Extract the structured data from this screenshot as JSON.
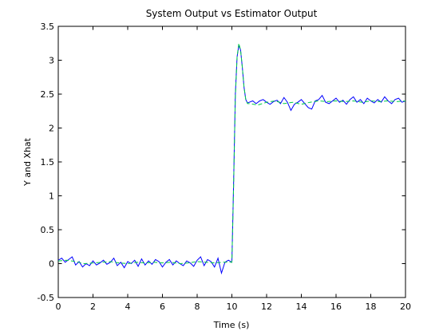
{
  "chart_data": {
    "type": "line",
    "title": "System Output vs Estimator Output",
    "xlabel": "Time (s)",
    "ylabel": "Y and Xhat",
    "xlim": [
      0,
      20
    ],
    "ylim": [
      -0.5,
      3.5
    ],
    "xticks": [
      0,
      2,
      4,
      6,
      8,
      10,
      12,
      14,
      16,
      18,
      20
    ],
    "yticks": [
      -0.5,
      0,
      0.5,
      1,
      1.5,
      2,
      2.5,
      3,
      3.5
    ],
    "grid": false,
    "legend": "none",
    "series": [
      {
        "color": "#0000ff",
        "x": [
          0,
          0.2,
          0.4,
          0.6,
          0.8,
          1.0,
          1.2,
          1.4,
          1.6,
          1.8,
          2.0,
          2.2,
          2.4,
          2.6,
          2.8,
          3.0,
          3.2,
          3.4,
          3.6,
          3.8,
          4.0,
          4.2,
          4.4,
          4.6,
          4.8,
          5.0,
          5.2,
          5.4,
          5.6,
          5.8,
          6.0,
          6.2,
          6.4,
          6.6,
          6.8,
          7.0,
          7.2,
          7.4,
          7.6,
          7.8,
          8.0,
          8.2,
          8.4,
          8.6,
          8.8,
          9.0,
          9.2,
          9.4,
          9.6,
          9.8,
          10.0,
          10.1,
          10.2,
          10.3,
          10.4,
          10.5,
          10.6,
          10.7,
          10.8,
          10.9,
          11.0,
          11.2,
          11.4,
          11.6,
          11.8,
          12.0,
          12.2,
          12.4,
          12.6,
          12.8,
          13.0,
          13.2,
          13.4,
          13.6,
          13.8,
          14.0,
          14.2,
          14.4,
          14.6,
          14.8,
          15.0,
          15.2,
          15.4,
          15.6,
          15.8,
          16.0,
          16.2,
          16.4,
          16.6,
          16.8,
          17.0,
          17.2,
          17.4,
          17.6,
          17.8,
          18.0,
          18.2,
          18.4,
          18.6,
          18.8,
          19.0,
          19.2,
          19.4,
          19.6,
          19.8,
          20.0
        ],
        "y": [
          0.05,
          0.08,
          0.02,
          0.06,
          0.1,
          -0.02,
          0.03,
          -0.05,
          0.0,
          -0.03,
          0.04,
          -0.02,
          0.01,
          0.05,
          -0.01,
          0.02,
          0.08,
          -0.03,
          0.02,
          -0.06,
          0.03,
          0.0,
          0.05,
          -0.04,
          0.07,
          -0.02,
          0.04,
          -0.01,
          0.06,
          0.03,
          -0.05,
          0.02,
          0.06,
          -0.02,
          0.04,
          0.0,
          -0.03,
          0.04,
          0.01,
          -0.04,
          0.05,
          0.1,
          -0.03,
          0.06,
          0.03,
          -0.05,
          0.08,
          -0.14,
          0.02,
          0.05,
          0.02,
          1.2,
          2.5,
          3.05,
          3.22,
          3.15,
          2.9,
          2.6,
          2.42,
          2.37,
          2.38,
          2.4,
          2.36,
          2.4,
          2.42,
          2.38,
          2.35,
          2.39,
          2.41,
          2.36,
          2.45,
          2.38,
          2.26,
          2.35,
          2.38,
          2.42,
          2.36,
          2.3,
          2.28,
          2.4,
          2.42,
          2.48,
          2.38,
          2.36,
          2.4,
          2.44,
          2.38,
          2.41,
          2.35,
          2.42,
          2.46,
          2.38,
          2.42,
          2.36,
          2.44,
          2.4,
          2.37,
          2.42,
          2.38,
          2.46,
          2.4,
          2.36,
          2.42,
          2.44,
          2.38,
          2.4
        ]
      },
      {
        "color": "#00cc44",
        "dashed": true,
        "x": [
          0,
          0.5,
          1.0,
          1.5,
          2.0,
          2.5,
          3.0,
          3.5,
          4.0,
          4.5,
          5.0,
          5.5,
          6.0,
          6.5,
          7.0,
          7.5,
          8.0,
          8.5,
          9.0,
          9.5,
          10.0,
          10.1,
          10.2,
          10.3,
          10.4,
          10.5,
          10.6,
          10.7,
          10.8,
          10.9,
          11.0,
          11.5,
          12.0,
          12.5,
          13.0,
          13.5,
          14.0,
          14.5,
          15.0,
          15.5,
          16.0,
          16.5,
          17.0,
          17.5,
          18.0,
          18.5,
          19.0,
          19.5,
          20.0
        ],
        "y": [
          0.04,
          0.05,
          0.03,
          0.0,
          0.01,
          0.02,
          0.03,
          0.01,
          0.0,
          0.02,
          0.01,
          0.02,
          0.01,
          0.02,
          0.0,
          0.01,
          0.03,
          0.02,
          0.01,
          0.02,
          0.02,
          1.15,
          2.45,
          3.05,
          3.25,
          3.15,
          2.9,
          2.6,
          2.42,
          2.36,
          2.36,
          2.34,
          2.38,
          2.4,
          2.36,
          2.38,
          2.35,
          2.38,
          2.4,
          2.39,
          2.4,
          2.39,
          2.4,
          2.38,
          2.4,
          2.39,
          2.4,
          2.39,
          2.4
        ]
      }
    ]
  }
}
